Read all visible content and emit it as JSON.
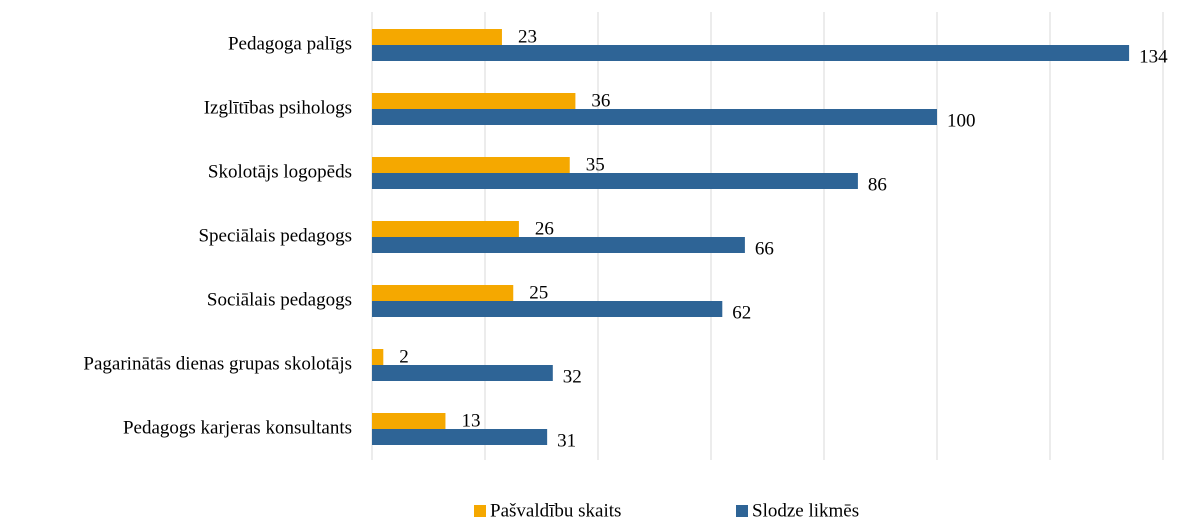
{
  "chart_data": {
    "type": "bar",
    "orientation": "horizontal",
    "categories": [
      "Pedagoga palīgs",
      "Izglītības psihologs",
      "Skolotājs logopēds",
      "Speciālais pedagogs",
      "Sociālais pedagogs",
      "Pagarinātās dienas grupas skolotājs",
      "Pedagogs karjeras konsultants"
    ],
    "series": [
      {
        "name": "Pašvaldību skaits",
        "color": "#f5a800",
        "values": [
          23,
          36,
          35,
          26,
          25,
          2,
          13
        ]
      },
      {
        "name": "Slodze likmēs",
        "color": "#2e6496",
        "values": [
          134,
          100,
          86,
          66,
          62,
          32,
          31
        ]
      }
    ],
    "xlim": [
      0,
      140
    ],
    "xticks": [
      0,
      20,
      40,
      60,
      80,
      100,
      120,
      140
    ],
    "grid": true,
    "legend": "bottom"
  }
}
